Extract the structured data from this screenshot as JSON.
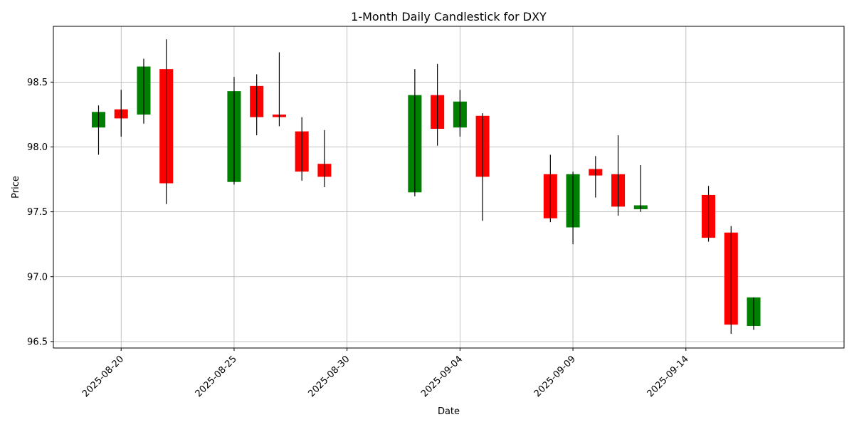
{
  "chart_data": {
    "type": "candlestick",
    "title": "1-Month Daily Candlestick for DXY",
    "xlabel": "Date",
    "ylabel": "Price",
    "x_tick_labels": [
      "2025-08-20",
      "2025-08-25",
      "2025-08-30",
      "2025-09-04",
      "2025-09-09",
      "2025-09-14"
    ],
    "y_ticks": [
      96.5,
      97.0,
      97.5,
      98.0,
      98.5
    ],
    "y_tick_labels": [
      "96.5",
      "97.0",
      "97.5",
      "98.0",
      "98.5"
    ],
    "xlim": [
      "2025-08-17",
      "2025-09-21"
    ],
    "ylim": [
      96.45,
      98.93
    ],
    "grid": true,
    "colors": {
      "up": "#008000",
      "down": "#ff0000",
      "wick": "#000000"
    },
    "candles": [
      {
        "date": "2025-08-19",
        "open": 98.15,
        "high": 98.32,
        "low": 97.94,
        "close": 98.27
      },
      {
        "date": "2025-08-20",
        "open": 98.29,
        "high": 98.44,
        "low": 98.08,
        "close": 98.22
      },
      {
        "date": "2025-08-21",
        "open": 98.25,
        "high": 98.68,
        "low": 98.18,
        "close": 98.62
      },
      {
        "date": "2025-08-22",
        "open": 98.6,
        "high": 98.83,
        "low": 97.56,
        "close": 97.72
      },
      {
        "date": "2025-08-25",
        "open": 97.73,
        "high": 98.54,
        "low": 97.71,
        "close": 98.43
      },
      {
        "date": "2025-08-26",
        "open": 98.47,
        "high": 98.56,
        "low": 98.09,
        "close": 98.23
      },
      {
        "date": "2025-08-27",
        "open": 98.25,
        "high": 98.73,
        "low": 98.16,
        "close": 98.23
      },
      {
        "date": "2025-08-28",
        "open": 98.12,
        "high": 98.23,
        "low": 97.74,
        "close": 97.81
      },
      {
        "date": "2025-08-29",
        "open": 97.87,
        "high": 98.13,
        "low": 97.69,
        "close": 97.77
      },
      {
        "date": "2025-09-02",
        "open": 97.65,
        "high": 98.6,
        "low": 97.62,
        "close": 98.4
      },
      {
        "date": "2025-09-03",
        "open": 98.4,
        "high": 98.64,
        "low": 98.01,
        "close": 98.14
      },
      {
        "date": "2025-09-04",
        "open": 98.15,
        "high": 98.44,
        "low": 98.08,
        "close": 98.35
      },
      {
        "date": "2025-09-05",
        "open": 98.24,
        "high": 98.26,
        "low": 97.43,
        "close": 97.77
      },
      {
        "date": "2025-09-08",
        "open": 97.79,
        "high": 97.94,
        "low": 97.42,
        "close": 97.45
      },
      {
        "date": "2025-09-09",
        "open": 97.38,
        "high": 97.81,
        "low": 97.25,
        "close": 97.79
      },
      {
        "date": "2025-09-10",
        "open": 97.83,
        "high": 97.93,
        "low": 97.61,
        "close": 97.78
      },
      {
        "date": "2025-09-11",
        "open": 97.79,
        "high": 98.09,
        "low": 97.47,
        "close": 97.54
      },
      {
        "date": "2025-09-12",
        "open": 97.52,
        "high": 97.86,
        "low": 97.5,
        "close": 97.55
      },
      {
        "date": "2025-09-15",
        "open": 97.63,
        "high": 97.7,
        "low": 97.27,
        "close": 97.3
      },
      {
        "date": "2025-09-16",
        "open": 97.34,
        "high": 97.39,
        "low": 96.56,
        "close": 96.63
      },
      {
        "date": "2025-09-17",
        "open": 96.62,
        "high": 96.84,
        "low": 96.59,
        "close": 96.84
      }
    ]
  }
}
